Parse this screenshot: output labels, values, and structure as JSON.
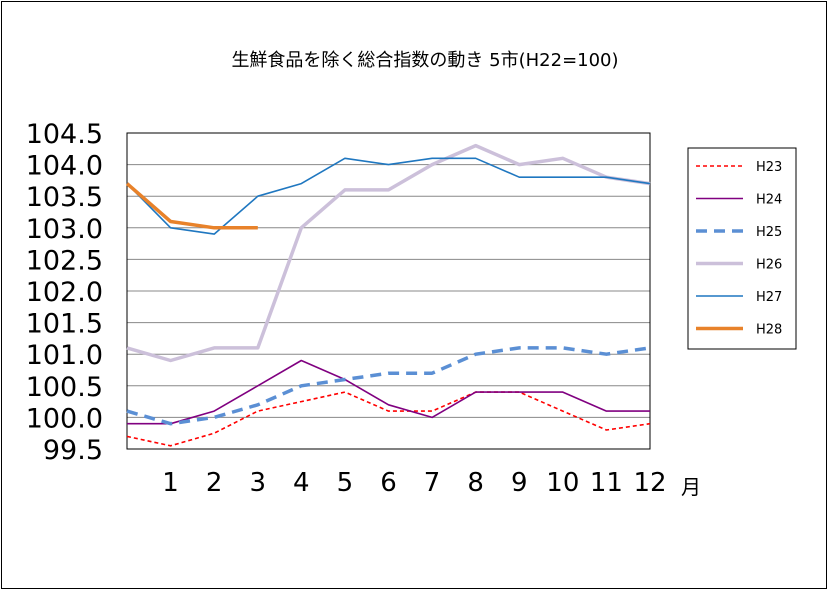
{
  "chart_data": {
    "type": "line",
    "title": "生鮮食品を除く総合指数の動き 5市(H22=100)",
    "xlabel": "月",
    "ylabel": "",
    "categories": [
      "",
      "1",
      "2",
      "3",
      "4",
      "5",
      "6",
      "7",
      "8",
      "9",
      "10",
      "11",
      "12"
    ],
    "x": [
      0,
      1,
      2,
      3,
      4,
      5,
      6,
      7,
      8,
      9,
      10,
      11,
      12
    ],
    "ylim": [
      99.5,
      104.5
    ],
    "yticks": [
      "104.5",
      "104.0",
      "103.5",
      "103.0",
      "102.5",
      "102.0",
      "101.5",
      "101.0",
      "100.5",
      "100.0",
      "99.5"
    ],
    "ytick_values": [
      104.5,
      104.0,
      103.5,
      103.0,
      102.5,
      102.0,
      101.5,
      101.0,
      100.5,
      100.0,
      99.5
    ],
    "grid": true,
    "legend_position": "right",
    "series": [
      {
        "name": "H23",
        "color": "#ff0000",
        "style": "dotted",
        "values": [
          99.7,
          99.55,
          99.75,
          100.1,
          100.25,
          100.4,
          100.1,
          100.1,
          100.4,
          100.4,
          100.1,
          99.8,
          99.9
        ]
      },
      {
        "name": "H24",
        "color": "#800080",
        "style": "solid",
        "values": [
          99.9,
          99.9,
          100.1,
          100.5,
          100.9,
          100.6,
          100.2,
          100.0,
          100.4,
          100.4,
          100.4,
          100.1,
          100.1
        ]
      },
      {
        "name": "H25",
        "color": "#5b8fd4",
        "style": "dashed",
        "values": [
          100.1,
          99.9,
          100.0,
          100.2,
          100.5,
          100.6,
          100.7,
          100.7,
          101.0,
          101.1,
          101.1,
          101.0,
          101.1
        ]
      },
      {
        "name": "H26",
        "color": "#ccc0da",
        "style": "solid-thick",
        "values": [
          101.1,
          100.9,
          101.1,
          101.1,
          103.0,
          103.6,
          103.6,
          104.0,
          104.3,
          104.0,
          104.1,
          103.8,
          103.7
        ]
      },
      {
        "name": "H27",
        "color": "#1f77c0",
        "style": "solid",
        "values": [
          103.7,
          103.0,
          102.9,
          103.5,
          103.7,
          104.1,
          104.0,
          104.1,
          104.1,
          103.8,
          103.8,
          103.8,
          103.7
        ]
      },
      {
        "name": "H28",
        "color": "#e8822a",
        "style": "solid-thick",
        "values": [
          103.7,
          103.1,
          103.0,
          103.0,
          null,
          null,
          null,
          null,
          null,
          null,
          null,
          null,
          null
        ]
      }
    ]
  }
}
